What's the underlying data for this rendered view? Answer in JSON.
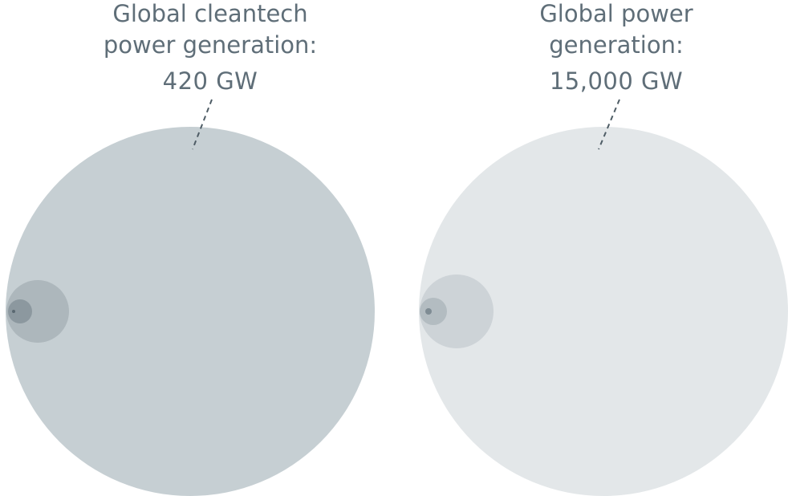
{
  "chart_data": [
    {
      "type": "bubble",
      "title_lines": [
        "Global cleantech",
        "power generation:"
      ],
      "value_label": "420 GW",
      "value": 420,
      "unit": "GW",
      "colors": {
        "outer": "#c6cfd3",
        "ring1": "#adb7bc",
        "ring2": "#8c989f",
        "ring3": "#5a6871"
      }
    },
    {
      "type": "bubble",
      "title_lines": [
        "Global power",
        "generation:"
      ],
      "value_label": "15,000 GW",
      "value": 15000,
      "unit": "GW",
      "colors": {
        "outer": "#e3e7e9",
        "ring1": "#cdd3d7",
        "ring2": "#b3bcc1",
        "ring3": "#7f8c94"
      }
    }
  ]
}
